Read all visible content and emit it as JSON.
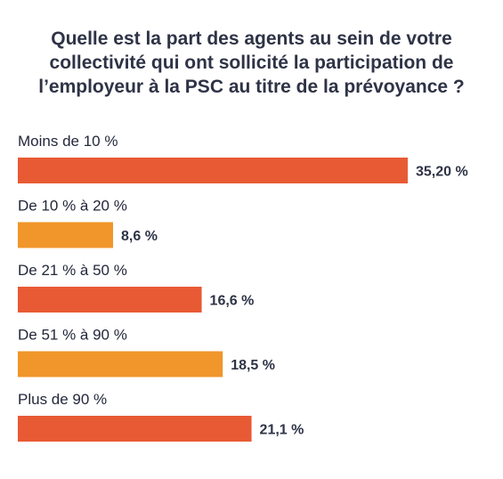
{
  "chart_data": {
    "type": "bar",
    "orientation": "horizontal",
    "title_lines": [
      "Quelle est la part des agents au sein de votre",
      "collectivité qui ont sollicité la participation de",
      "l’employeur à la PSC au titre de la prévoyance ?"
    ],
    "categories": [
      "Moins de 10 %",
      "De 10 % à 20 %",
      "De 21 % à 50 %",
      "De 51 % à 90 %",
      "Plus de 90 %"
    ],
    "values": [
      35.2,
      8.6,
      16.6,
      18.5,
      21.1
    ],
    "value_labels": [
      "35,20 %",
      "8,6 %",
      "16,6 %",
      "18,5 %",
      "21,1 %"
    ],
    "colors": [
      "#e85a34",
      "#f0962a",
      "#e85a34",
      "#f0962a",
      "#e85a34"
    ],
    "xlim": [
      0,
      35.2
    ],
    "grid": false,
    "legend": "none"
  }
}
